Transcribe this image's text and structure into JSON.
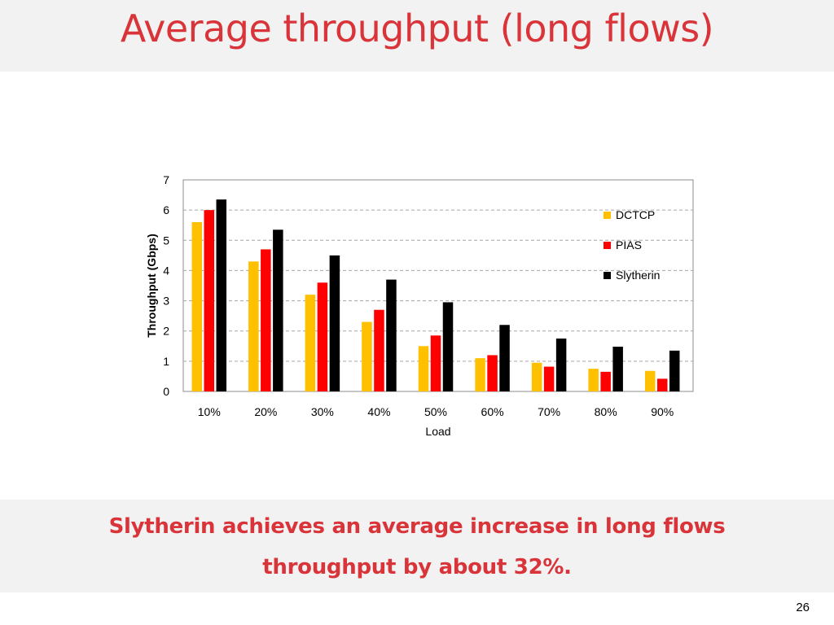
{
  "slide": {
    "title": "Average throughput (long flows)",
    "takeaway_line1": "Slytherin achieves an average increase in long flows",
    "takeaway_line2": "throughput by about 32%.",
    "page_number": "26"
  },
  "colors": {
    "title": "#d9343a",
    "band": "#f2f2f2"
  },
  "chart_data": {
    "type": "bar",
    "xlabel": "Load",
    "ylabel": "Throughput (Gbps)",
    "ylim": [
      0,
      7
    ],
    "yticks": [
      0,
      1,
      2,
      3,
      4,
      5,
      6,
      7
    ],
    "grid": true,
    "legend_position": "right",
    "categories": [
      "10%",
      "20%",
      "30%",
      "40%",
      "50%",
      "60%",
      "70%",
      "80%",
      "90%"
    ],
    "series": [
      {
        "name": "DCTCP",
        "color": "#ffc000",
        "values": [
          5.6,
          4.3,
          3.2,
          2.3,
          1.5,
          1.1,
          0.95,
          0.75,
          0.68
        ]
      },
      {
        "name": "PIAS",
        "color": "#ff0000",
        "values": [
          6.0,
          4.7,
          3.6,
          2.7,
          1.85,
          1.2,
          0.82,
          0.65,
          0.42
        ]
      },
      {
        "name": "Slytherin",
        "color": "#000000",
        "values": [
          6.35,
          5.35,
          4.5,
          3.7,
          2.95,
          2.2,
          1.75,
          1.48,
          1.35
        ]
      }
    ]
  }
}
